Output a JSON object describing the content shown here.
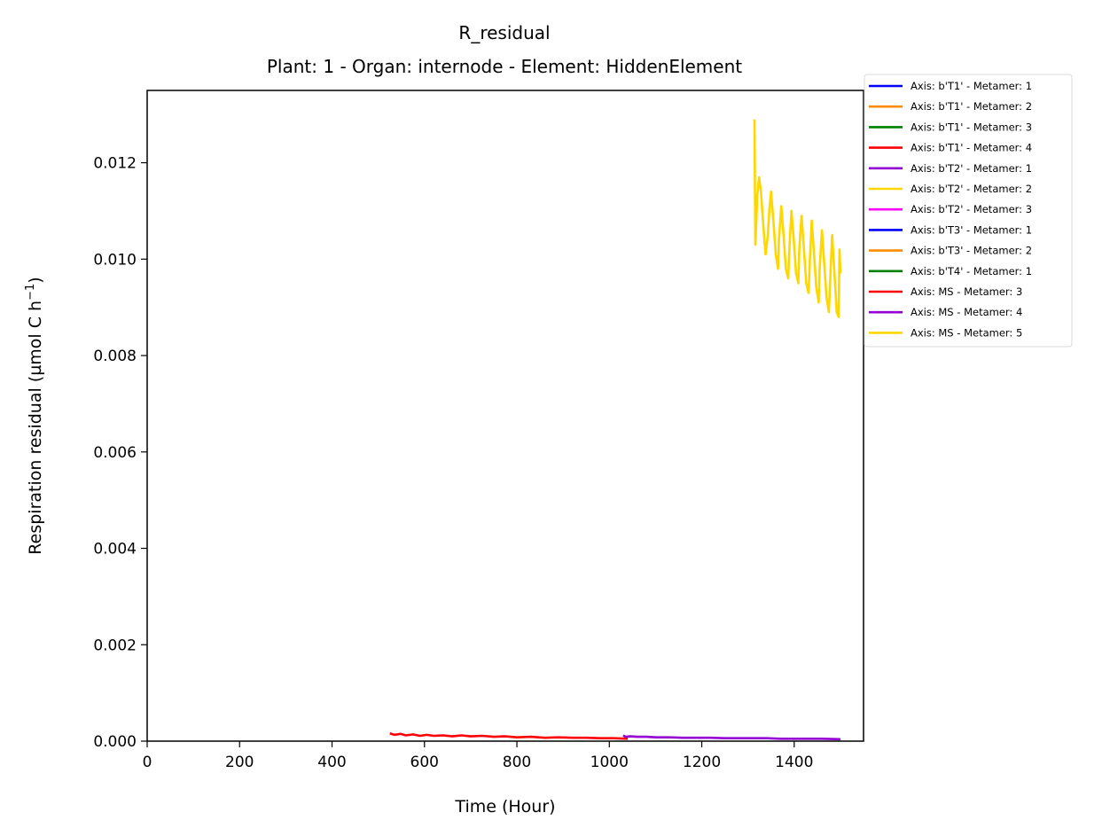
{
  "chart_data": {
    "type": "line",
    "title": "R_residual",
    "subtitle": "Plant: 1 - Organ: internode - Element: HiddenElement",
    "xlabel": "Time (Hour)",
    "ylabel": "Respiration residual (µmol C h",
    "ylabel_sup": "−1",
    "ylabel_end": ")",
    "xlim": [
      0,
      1550
    ],
    "ylim": [
      0,
      0.0135
    ],
    "xticks": [
      0,
      200,
      400,
      600,
      800,
      1000,
      1200,
      1400
    ],
    "xtick_labels": [
      "0",
      "200",
      "400",
      "600",
      "800",
      "1000",
      "1200",
      "1400"
    ],
    "yticks": [
      0,
      0.002,
      0.004,
      0.006,
      0.008,
      0.01,
      0.012
    ],
    "ytick_labels": [
      "0.000",
      "0.002",
      "0.004",
      "0.006",
      "0.008",
      "0.010",
      "0.012"
    ],
    "legend_position": "outside-right-top",
    "grid": false,
    "series": [
      {
        "name": "Axis: b'T1' - Metamer: 1",
        "color": "#0000ff",
        "x": [],
        "y": []
      },
      {
        "name": "Axis: b'T1' - Metamer: 2",
        "color": "#ff8c00",
        "x": [],
        "y": []
      },
      {
        "name": "Axis: b'T1' - Metamer: 3",
        "color": "#008000",
        "x": [],
        "y": []
      },
      {
        "name": "Axis: b'T1' - Metamer: 4",
        "color": "#ff0000",
        "x": [],
        "y": []
      },
      {
        "name": "Axis: b'T2' - Metamer: 1",
        "color": "#9400d3",
        "x": [],
        "y": []
      },
      {
        "name": "Axis: b'T2' - Metamer: 2",
        "color": "#ffd700",
        "x": [],
        "y": []
      },
      {
        "name": "Axis: b'T2' - Metamer: 3",
        "color": "#ff00ff",
        "x": [],
        "y": []
      },
      {
        "name": "Axis: b'T3' - Metamer: 1",
        "color": "#0000ff",
        "x": [],
        "y": []
      },
      {
        "name": "Axis: b'T3' - Metamer: 2",
        "color": "#ff8c00",
        "x": [],
        "y": []
      },
      {
        "name": "Axis: b'T4' - Metamer: 1",
        "color": "#008000",
        "x": [],
        "y": []
      },
      {
        "name": "Axis: MS - Metamer: 3",
        "color": "#ff0000",
        "x": [
          525,
          535,
          548,
          560,
          575,
          590,
          605,
          620,
          640,
          660,
          680,
          700,
          725,
          750,
          775,
          800,
          830,
          860,
          890,
          920,
          950,
          980,
          1010,
          1040
        ],
        "y": [
          0.00016,
          0.00013,
          0.00015,
          0.00012,
          0.00014,
          0.00011,
          0.00013,
          0.00011,
          0.00012,
          0.0001,
          0.00012,
          0.0001,
          0.00011,
          9e-05,
          0.0001,
          8e-05,
          9e-05,
          7e-05,
          8e-05,
          7e-05,
          7e-05,
          6e-05,
          6e-05,
          5e-05
        ]
      },
      {
        "name": "Axis: MS - Metamer: 4",
        "color": "#9400d3",
        "x": [
          1030,
          1035,
          1045,
          1060,
          1080,
          1100,
          1130,
          1160,
          1190,
          1220,
          1250,
          1280,
          1310,
          1340,
          1370,
          1400,
          1430,
          1460,
          1500
        ],
        "y": [
          0.00012,
          9e-05,
          0.0001,
          9e-05,
          9e-05,
          8e-05,
          8e-05,
          7e-05,
          7e-05,
          7e-05,
          6e-05,
          6e-05,
          6e-05,
          6e-05,
          5e-05,
          5e-05,
          5e-05,
          5e-05,
          4e-05
        ]
      },
      {
        "name": "Axis: MS - Metamer: 5",
        "color": "#ffd700",
        "x": [
          1314,
          1316,
          1318,
          1320,
          1324,
          1328,
          1333,
          1338,
          1343,
          1346,
          1350,
          1355,
          1360,
          1365,
          1367,
          1372,
          1377,
          1382,
          1387,
          1390,
          1394,
          1399,
          1404,
          1409,
          1411,
          1416,
          1421,
          1426,
          1431,
          1434,
          1438,
          1443,
          1448,
          1453,
          1455,
          1460,
          1465,
          1470,
          1475,
          1478,
          1482,
          1487,
          1492,
          1496,
          1498,
          1500
        ],
        "y": [
          0.0129,
          0.0103,
          0.0108,
          0.0113,
          0.0117,
          0.0114,
          0.0107,
          0.0101,
          0.0105,
          0.011,
          0.0114,
          0.0108,
          0.0101,
          0.0098,
          0.0104,
          0.0111,
          0.0105,
          0.0098,
          0.0096,
          0.0103,
          0.011,
          0.0104,
          0.0097,
          0.0095,
          0.0102,
          0.0109,
          0.0102,
          0.0095,
          0.0093,
          0.01,
          0.0108,
          0.0101,
          0.0094,
          0.0091,
          0.0098,
          0.0106,
          0.0099,
          0.0092,
          0.0089,
          0.0096,
          0.0105,
          0.0097,
          0.0089,
          0.0088,
          0.0102,
          0.0097
        ]
      }
    ]
  }
}
